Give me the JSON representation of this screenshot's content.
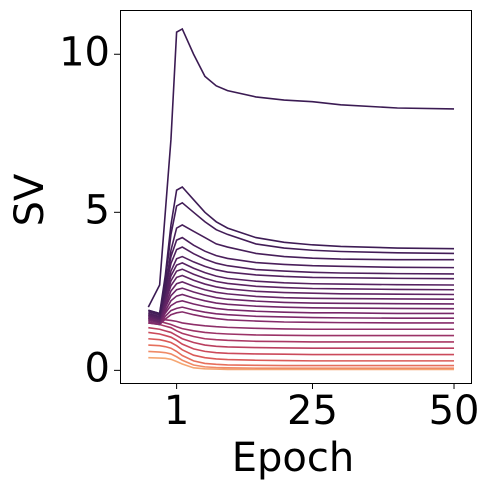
{
  "chart_data": {
    "type": "line",
    "x_label": "Epoch",
    "y_label": "SV",
    "x": [
      -4,
      -2,
      -1,
      0,
      1,
      2,
      4,
      6,
      8,
      10,
      15,
      20,
      25,
      30,
      40,
      50
    ],
    "xlim": [
      -9,
      53
    ],
    "ylim": [
      -0.4,
      11.4
    ],
    "xticks": [
      1,
      25,
      50
    ],
    "yticks": [
      0,
      5,
      10
    ],
    "series": [
      {
        "color": "#3b1b53",
        "values": [
          2.0,
          2.7,
          5.0,
          7.3,
          10.7,
          10.8,
          10.0,
          9.3,
          9.0,
          8.85,
          8.65,
          8.55,
          8.5,
          8.4,
          8.3,
          8.27
        ]
      },
      {
        "color": "#3e1c55",
        "values": [
          1.9,
          1.8,
          3.0,
          4.6,
          5.7,
          5.8,
          5.4,
          5.0,
          4.7,
          4.5,
          4.2,
          4.05,
          3.97,
          3.92,
          3.87,
          3.85
        ]
      },
      {
        "color": "#421d57",
        "values": [
          1.9,
          1.8,
          2.8,
          4.3,
          5.2,
          5.3,
          5.0,
          4.7,
          4.45,
          4.3,
          4.0,
          3.87,
          3.8,
          3.76,
          3.72,
          3.7
        ]
      },
      {
        "color": "#461e59",
        "values": [
          1.85,
          1.75,
          2.5,
          3.8,
          4.5,
          4.6,
          4.4,
          4.2,
          4.0,
          3.9,
          3.7,
          3.6,
          3.55,
          3.52,
          3.5,
          3.5
        ]
      },
      {
        "color": "#4a1f5b",
        "values": [
          1.8,
          1.7,
          2.64,
          3.6,
          4.12,
          4.2,
          3.96,
          3.77,
          3.63,
          3.54,
          3.41,
          3.35,
          3.31,
          3.29,
          3.26,
          3.25
        ]
      },
      {
        "color": "#4e205d",
        "values": [
          1.8,
          1.7,
          2.54,
          3.38,
          3.82,
          3.9,
          3.69,
          3.52,
          3.39,
          3.31,
          3.19,
          3.14,
          3.1,
          3.08,
          3.06,
          3.05
        ]
      },
      {
        "color": "#52215f",
        "values": [
          1.75,
          1.65,
          2.4,
          3.14,
          3.53,
          3.6,
          3.43,
          3.29,
          3.18,
          3.11,
          3.02,
          2.97,
          2.94,
          2.93,
          2.91,
          2.9
        ]
      },
      {
        "color": "#562261",
        "values": [
          1.75,
          1.65,
          2.33,
          2.99,
          3.33,
          3.4,
          3.23,
          3.09,
          2.98,
          2.91,
          2.82,
          2.77,
          2.74,
          2.73,
          2.71,
          2.7
        ]
      },
      {
        "color": "#5b2362",
        "values": [
          1.7,
          1.6,
          2.23,
          2.83,
          3.14,
          3.2,
          3.04,
          2.91,
          2.81,
          2.75,
          2.66,
          2.62,
          2.59,
          2.58,
          2.56,
          2.55
        ]
      },
      {
        "color": "#602464",
        "values": [
          1.7,
          1.6,
          2.16,
          2.68,
          2.94,
          3.0,
          2.85,
          2.73,
          2.64,
          2.58,
          2.5,
          2.46,
          2.44,
          2.42,
          2.41,
          2.4
        ]
      },
      {
        "color": "#652565",
        "values": [
          1.65,
          1.55,
          2.05,
          2.51,
          2.74,
          2.8,
          2.66,
          2.55,
          2.47,
          2.42,
          2.34,
          2.3,
          2.28,
          2.27,
          2.26,
          2.25
        ]
      },
      {
        "color": "#6b2667",
        "values": [
          1.65,
          1.55,
          1.98,
          2.36,
          2.55,
          2.6,
          2.48,
          2.38,
          2.3,
          2.25,
          2.19,
          2.15,
          2.13,
          2.12,
          2.11,
          2.1
        ]
      },
      {
        "color": "#712768",
        "values": [
          1.6,
          1.5,
          1.88,
          2.2,
          2.35,
          2.4,
          2.29,
          2.2,
          2.13,
          2.09,
          2.03,
          2.0,
          1.98,
          1.97,
          1.96,
          1.95
        ]
      },
      {
        "color": "#772869",
        "values": [
          1.6,
          1.5,
          1.81,
          2.05,
          2.16,
          2.2,
          2.1,
          2.02,
          1.96,
          1.92,
          1.87,
          1.84,
          1.82,
          1.82,
          1.8,
          1.8
        ]
      },
      {
        "color": "#7d2a6a",
        "values": [
          1.55,
          1.45,
          1.71,
          1.89,
          1.96,
          2.0,
          1.91,
          1.84,
          1.79,
          1.76,
          1.71,
          1.69,
          1.67,
          1.66,
          1.65,
          1.65
        ]
      },
      {
        "color": "#852c6a",
        "values": [
          1.5,
          1.45,
          1.62,
          1.76,
          1.82,
          1.85,
          1.76,
          1.69,
          1.64,
          1.6,
          1.56,
          1.53,
          1.52,
          1.51,
          1.5,
          1.5
        ]
      },
      {
        "color": "#8e2f69",
        "values": [
          1.7,
          1.65,
          1.6,
          1.58,
          1.55,
          1.5,
          1.45,
          1.41,
          1.38,
          1.36,
          1.33,
          1.31,
          1.3,
          1.3,
          1.3,
          1.3
        ]
      },
      {
        "color": "#9b3367",
        "values": [
          1.6,
          1.55,
          1.5,
          1.45,
          1.38,
          1.32,
          1.25,
          1.2,
          1.17,
          1.15,
          1.12,
          1.11,
          1.1,
          1.1,
          1.1,
          1.1
        ]
      },
      {
        "color": "#aa3864",
        "values": [
          1.5,
          1.45,
          1.4,
          1.35,
          1.25,
          1.17,
          1.07,
          1.0,
          0.97,
          0.95,
          0.92,
          0.91,
          0.9,
          0.9,
          0.9,
          0.9
        ]
      },
      {
        "color": "#ba3f5f",
        "values": [
          1.35,
          1.3,
          1.25,
          1.2,
          1.1,
          1.0,
          0.88,
          0.8,
          0.76,
          0.74,
          0.72,
          0.71,
          0.7,
          0.7,
          0.7,
          0.7
        ]
      },
      {
        "color": "#cb4a5b",
        "values": [
          1.2,
          1.15,
          1.1,
          1.05,
          0.95,
          0.83,
          0.68,
          0.6,
          0.56,
          0.54,
          0.52,
          0.51,
          0.5,
          0.5,
          0.5,
          0.5
        ]
      },
      {
        "color": "#da5a58",
        "values": [
          1.0,
          0.97,
          0.93,
          0.88,
          0.78,
          0.65,
          0.48,
          0.4,
          0.36,
          0.34,
          0.32,
          0.31,
          0.3,
          0.3,
          0.3,
          0.3
        ]
      },
      {
        "color": "#e66f5c",
        "values": [
          0.8,
          0.78,
          0.75,
          0.7,
          0.6,
          0.47,
          0.3,
          0.22,
          0.19,
          0.17,
          0.16,
          0.15,
          0.15,
          0.15,
          0.15,
          0.15
        ]
      },
      {
        "color": "#ef8a66",
        "values": [
          0.6,
          0.58,
          0.56,
          0.52,
          0.43,
          0.32,
          0.17,
          0.11,
          0.09,
          0.08,
          0.07,
          0.07,
          0.07,
          0.07,
          0.07,
          0.07
        ]
      },
      {
        "color": "#f5a673",
        "values": [
          0.4,
          0.39,
          0.38,
          0.35,
          0.28,
          0.2,
          0.08,
          0.05,
          0.04,
          0.03,
          0.03,
          0.03,
          0.03,
          0.03,
          0.03,
          0.03
        ]
      }
    ]
  }
}
